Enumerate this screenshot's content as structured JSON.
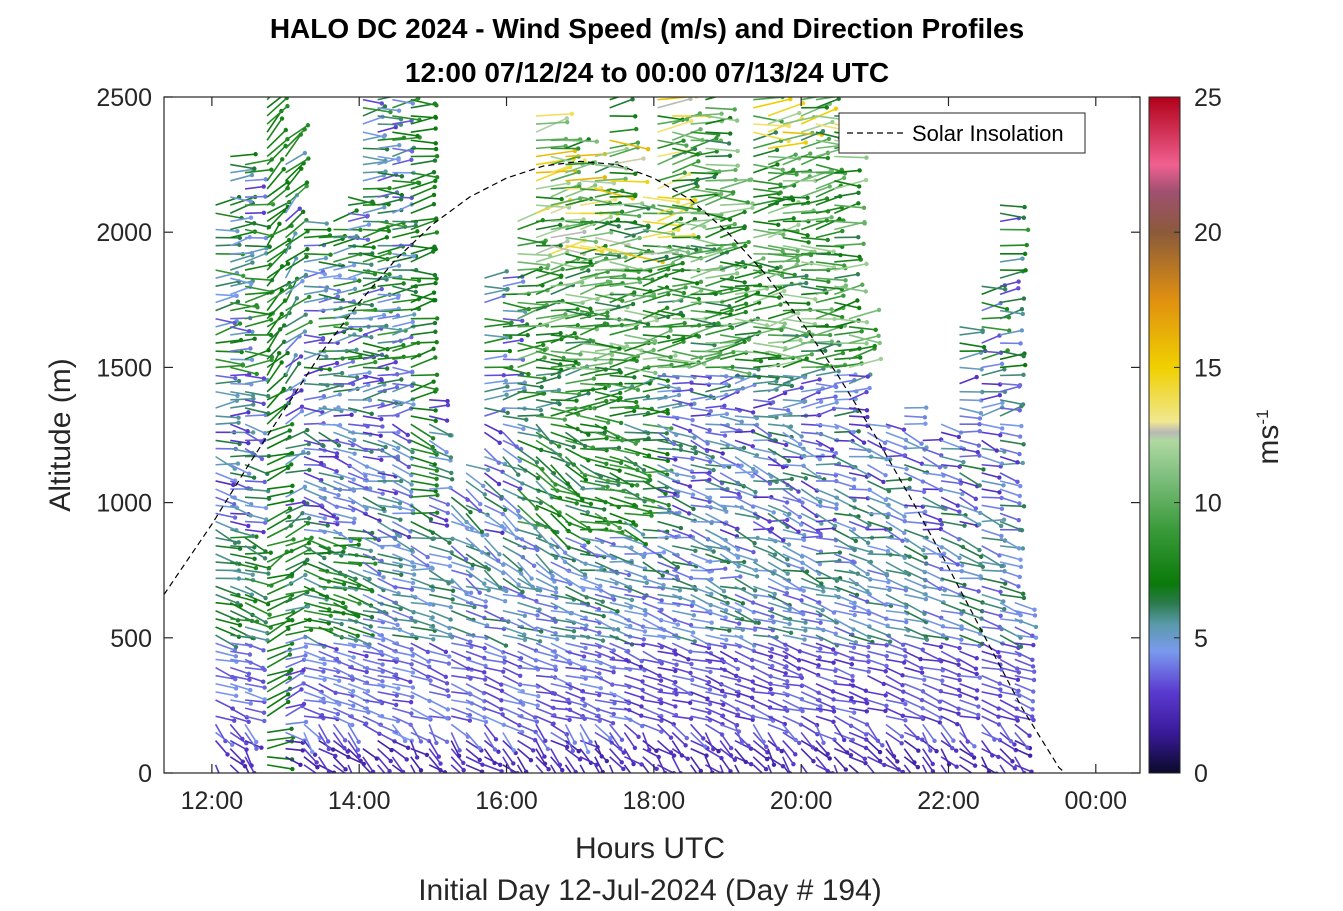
{
  "chart_data": {
    "type": "quiver",
    "title": "HALO DC 2024 - Wind Speed (m/s) and Direction Profiles",
    "subtitle": "12:00 07/12/24 to 00:00 07/13/24  UTC",
    "xlabel": "Hours UTC",
    "xlabel2": "Initial Day 12-Jul-2024 (Day # 194)",
    "ylabel": "Altitude (m)",
    "xlim": [
      11.35,
      24.6
    ],
    "ylim": [
      0,
      2500
    ],
    "x_tick_values": [
      12,
      14,
      16,
      18,
      20,
      22,
      24
    ],
    "x_tick_labels": [
      "12:00",
      "14:00",
      "16:00",
      "18:00",
      "20:00",
      "22:00",
      "00:00"
    ],
    "y_tick_values": [
      0,
      500,
      1000,
      1500,
      2000,
      2500
    ],
    "y_tick_labels": [
      "0",
      "500",
      "1000",
      "1500",
      "2000",
      "2500"
    ],
    "grid": false,
    "legend": {
      "entries": [
        "Solar Insolation"
      ],
      "placement": "top-right"
    },
    "solar_insolation": {
      "name": "Solar Insolation",
      "style": "dashed",
      "x": [
        11.35,
        12.0,
        12.5,
        13.0,
        13.5,
        14.0,
        14.5,
        15.0,
        15.5,
        16.0,
        16.5,
        17.0,
        17.5,
        18.0,
        18.5,
        19.0,
        19.5,
        20.0,
        20.5,
        21.0,
        21.5,
        22.0,
        22.5,
        23.0,
        23.5,
        24.0,
        24.5,
        24.6
      ],
      "y": [
        660,
        920,
        1140,
        1350,
        1560,
        1740,
        1900,
        2030,
        2130,
        2200,
        2245,
        2262,
        2250,
        2200,
        2120,
        2000,
        1850,
        1670,
        1470,
        1250,
        1010,
        760,
        500,
        240,
        20,
        -100,
        -100,
        -100
      ]
    },
    "colorbar": {
      "label": "ms",
      "label_exponent": "-1",
      "range": [
        0,
        25
      ],
      "tick_values": [
        0,
        5,
        10,
        15,
        20,
        25
      ],
      "tick_labels": [
        "0",
        "5",
        "10",
        "15",
        "20",
        "25"
      ],
      "stops": [
        {
          "v": 0,
          "c": "#0a0a2a"
        },
        {
          "v": 1.5,
          "c": "#3a1a9a"
        },
        {
          "v": 3.0,
          "c": "#5a3ad0"
        },
        {
          "v": 4.5,
          "c": "#7a9aee"
        },
        {
          "v": 5.5,
          "c": "#5a9aaa"
        },
        {
          "v": 6.3,
          "c": "#2a7a4a"
        },
        {
          "v": 7.0,
          "c": "#0a7a0a"
        },
        {
          "v": 9.0,
          "c": "#3a9a3a"
        },
        {
          "v": 11.0,
          "c": "#80c080"
        },
        {
          "v": 12.3,
          "c": "#b0d8a0"
        },
        {
          "v": 12.6,
          "c": "#b8b8b8"
        },
        {
          "v": 13.0,
          "c": "#f0e890"
        },
        {
          "v": 15.0,
          "c": "#f0d000"
        },
        {
          "v": 17.5,
          "c": "#e09010"
        },
        {
          "v": 20.0,
          "c": "#8a5a3a"
        },
        {
          "v": 21.5,
          "c": "#a05070"
        },
        {
          "v": 22.5,
          "c": "#f06090"
        },
        {
          "v": 25.0,
          "c": "#b00018"
        }
      ]
    },
    "profiles": {
      "description_fields": [
        "time_hours",
        "min_altitude_m",
        "max_altitude_m",
        "spacing_m"
      ],
      "columns": [
        [
          12.05,
          30,
          2100,
          30
        ],
        [
          12.25,
          30,
          2300,
          30
        ],
        [
          12.45,
          30,
          2250,
          30
        ],
        [
          12.75,
          30,
          2500,
          30
        ],
        [
          13.0,
          30,
          2350,
          30
        ],
        [
          13.25,
          30,
          2050,
          30
        ],
        [
          13.45,
          30,
          2000,
          30
        ],
        [
          13.65,
          30,
          2050,
          30
        ],
        [
          13.85,
          30,
          2150,
          30
        ],
        [
          14.05,
          30,
          2500,
          30
        ],
        [
          14.25,
          30,
          2500,
          30
        ],
        [
          14.45,
          30,
          2500,
          30
        ],
        [
          14.7,
          30,
          2500,
          30
        ],
        [
          14.95,
          30,
          1380,
          30
        ],
        [
          15.25,
          30,
          1050,
          30
        ],
        [
          15.45,
          30,
          1150,
          30
        ],
        [
          15.7,
          30,
          1850,
          30
        ],
        [
          15.95,
          30,
          1850,
          30
        ],
        [
          16.15,
          30,
          2050,
          30
        ],
        [
          16.4,
          30,
          2450,
          30
        ],
        [
          16.6,
          30,
          2350,
          30
        ],
        [
          16.8,
          30,
          2350,
          30
        ],
        [
          17.0,
          30,
          2200,
          30
        ],
        [
          17.2,
          30,
          2300,
          30
        ],
        [
          17.4,
          30,
          2500,
          30
        ],
        [
          17.6,
          30,
          2100,
          30
        ],
        [
          17.85,
          30,
          2150,
          30
        ],
        [
          18.05,
          30,
          2500,
          30
        ],
        [
          18.25,
          30,
          2450,
          30
        ],
        [
          18.5,
          30,
          2450,
          30
        ],
        [
          18.7,
          30,
          2500,
          30
        ],
        [
          18.9,
          30,
          2200,
          30
        ],
        [
          19.1,
          30,
          1900,
          30
        ],
        [
          19.35,
          30,
          2500,
          30
        ],
        [
          19.55,
          30,
          2450,
          30
        ],
        [
          19.75,
          30,
          2400,
          30
        ],
        [
          20.0,
          30,
          2500,
          30
        ],
        [
          20.2,
          30,
          2500,
          30
        ],
        [
          20.45,
          30,
          2450,
          30
        ],
        [
          20.65,
          30,
          1700,
          30
        ],
        [
          20.9,
          30,
          1300,
          30
        ],
        [
          21.15,
          30,
          1300,
          30
        ],
        [
          21.4,
          30,
          1350,
          30
        ],
        [
          21.65,
          30,
          1250,
          30
        ],
        [
          21.9,
          30,
          1300,
          30
        ],
        [
          22.15,
          30,
          1650,
          30
        ],
        [
          22.45,
          30,
          1800,
          30
        ],
        [
          22.7,
          30,
          2100,
          30
        ],
        [
          22.9,
          30,
          650,
          30
        ]
      ]
    }
  }
}
